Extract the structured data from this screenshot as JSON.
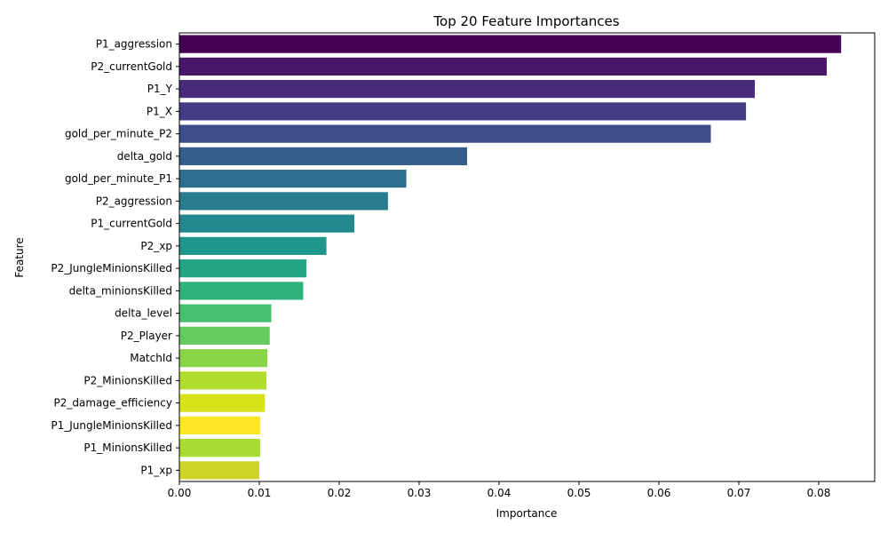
{
  "chart_data": {
    "type": "bar",
    "orientation": "horizontal",
    "title": "Top 20 Feature Importances",
    "xlabel": "Importance",
    "ylabel": "Feature",
    "xlim": [
      0,
      0.087
    ],
    "xticks": [
      "0.00",
      "0.01",
      "0.02",
      "0.03",
      "0.04",
      "0.05",
      "0.06",
      "0.07",
      "0.08"
    ],
    "grid": false,
    "colormap": "viridis",
    "categories": [
      "P1_aggression",
      "P2_currentGold",
      "P1_Y",
      "P1_X",
      "gold_per_minute_P2",
      "delta_gold",
      "gold_per_minute_P1",
      "P2_aggression",
      "P1_currentGold",
      "P2_xp",
      "P2_JungleMinionsKilled",
      "delta_minionsKilled",
      "delta_level",
      "P2_Player",
      "MatchId",
      "P2_MinionsKilled",
      "P2_damage_efficiency",
      "P1_JungleMinionsKilled",
      "P1_MinionsKilled",
      "P1_xp"
    ],
    "values": [
      0.0828,
      0.081,
      0.072,
      0.0709,
      0.0665,
      0.036,
      0.0284,
      0.0261,
      0.0219,
      0.0184,
      0.0159,
      0.0155,
      0.0115,
      0.0113,
      0.011,
      0.0109,
      0.0107,
      0.0101,
      0.0101,
      0.01
    ],
    "colors": [
      "#440154",
      "#481769",
      "#472a7a",
      "#433d84",
      "#3d4e8a",
      "#355e8d",
      "#2e6d8e",
      "#297b8e",
      "#23898e",
      "#1f978b",
      "#21a585",
      "#2eb37c",
      "#46c06f",
      "#65cb5e",
      "#89d548",
      "#b0dd2f",
      "#d8e219",
      "#fde725",
      "#a8db34",
      "#cdd42a"
    ]
  }
}
